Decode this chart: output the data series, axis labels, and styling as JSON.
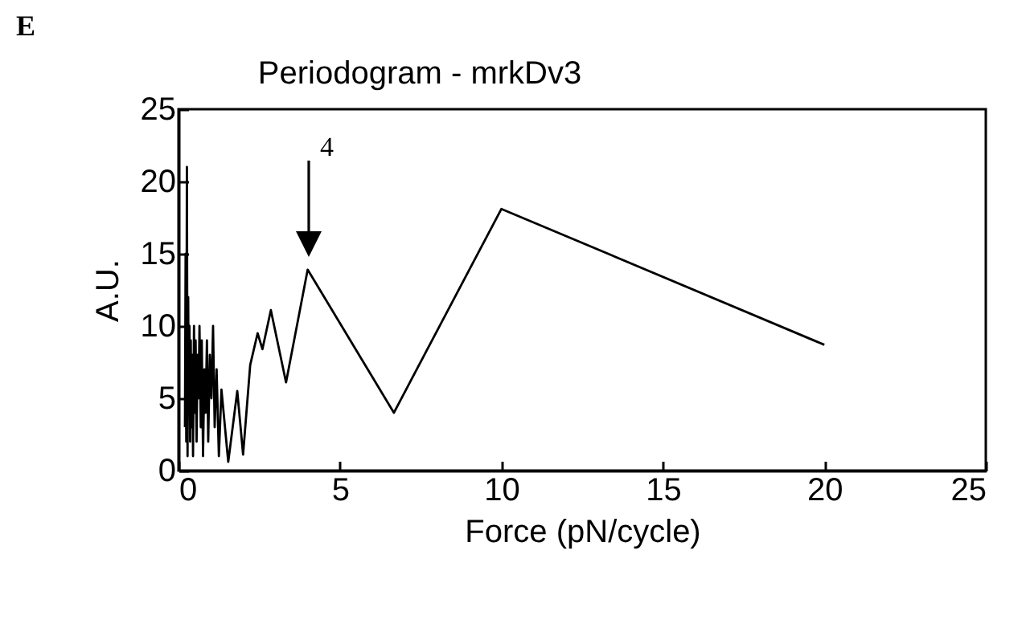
{
  "chart_data": {
    "type": "line",
    "title": "Periodogram - mrkDv3",
    "xlabel": "Force (pN/cycle)",
    "ylabel": "A.U.",
    "x": [
      0.2,
      0.22,
      0.24,
      0.26,
      0.28,
      0.3,
      0.32,
      0.34,
      0.36,
      0.38,
      0.4,
      0.43,
      0.45,
      0.48,
      0.5,
      0.53,
      0.56,
      0.59,
      0.62,
      0.65,
      0.69,
      0.72,
      0.76,
      0.8,
      0.84,
      0.88,
      0.92,
      0.97,
      1.02,
      1.07,
      1.12,
      1.18,
      1.25,
      1.33,
      1.54,
      1.82,
      2.0,
      2.22,
      2.45,
      2.6,
      2.86,
      3.33,
      4.0,
      6.67,
      10.0,
      20.0
    ],
    "values": [
      3,
      15,
      2,
      21,
      1,
      12,
      4,
      10,
      2,
      9,
      3,
      8,
      1,
      10,
      4,
      9,
      2,
      8,
      5,
      10,
      3,
      9,
      1,
      7,
      4,
      9,
      2,
      8,
      5,
      10,
      3,
      7,
      1,
      5.6,
      0.6,
      5.5,
      1.1,
      7.3,
      9.5,
      8.4,
      11.1,
      6.1,
      13.9,
      4.0,
      18.1,
      8.7
    ],
    "color": "#000000",
    "xlim": [
      0,
      25
    ],
    "xticks": [
      0,
      5,
      10,
      15,
      20,
      25
    ],
    "ylim": [
      0,
      25
    ],
    "yticks": [
      0,
      5,
      10,
      15,
      20,
      25
    ],
    "grid": false,
    "annotations": [
      "E",
      "4"
    ]
  }
}
